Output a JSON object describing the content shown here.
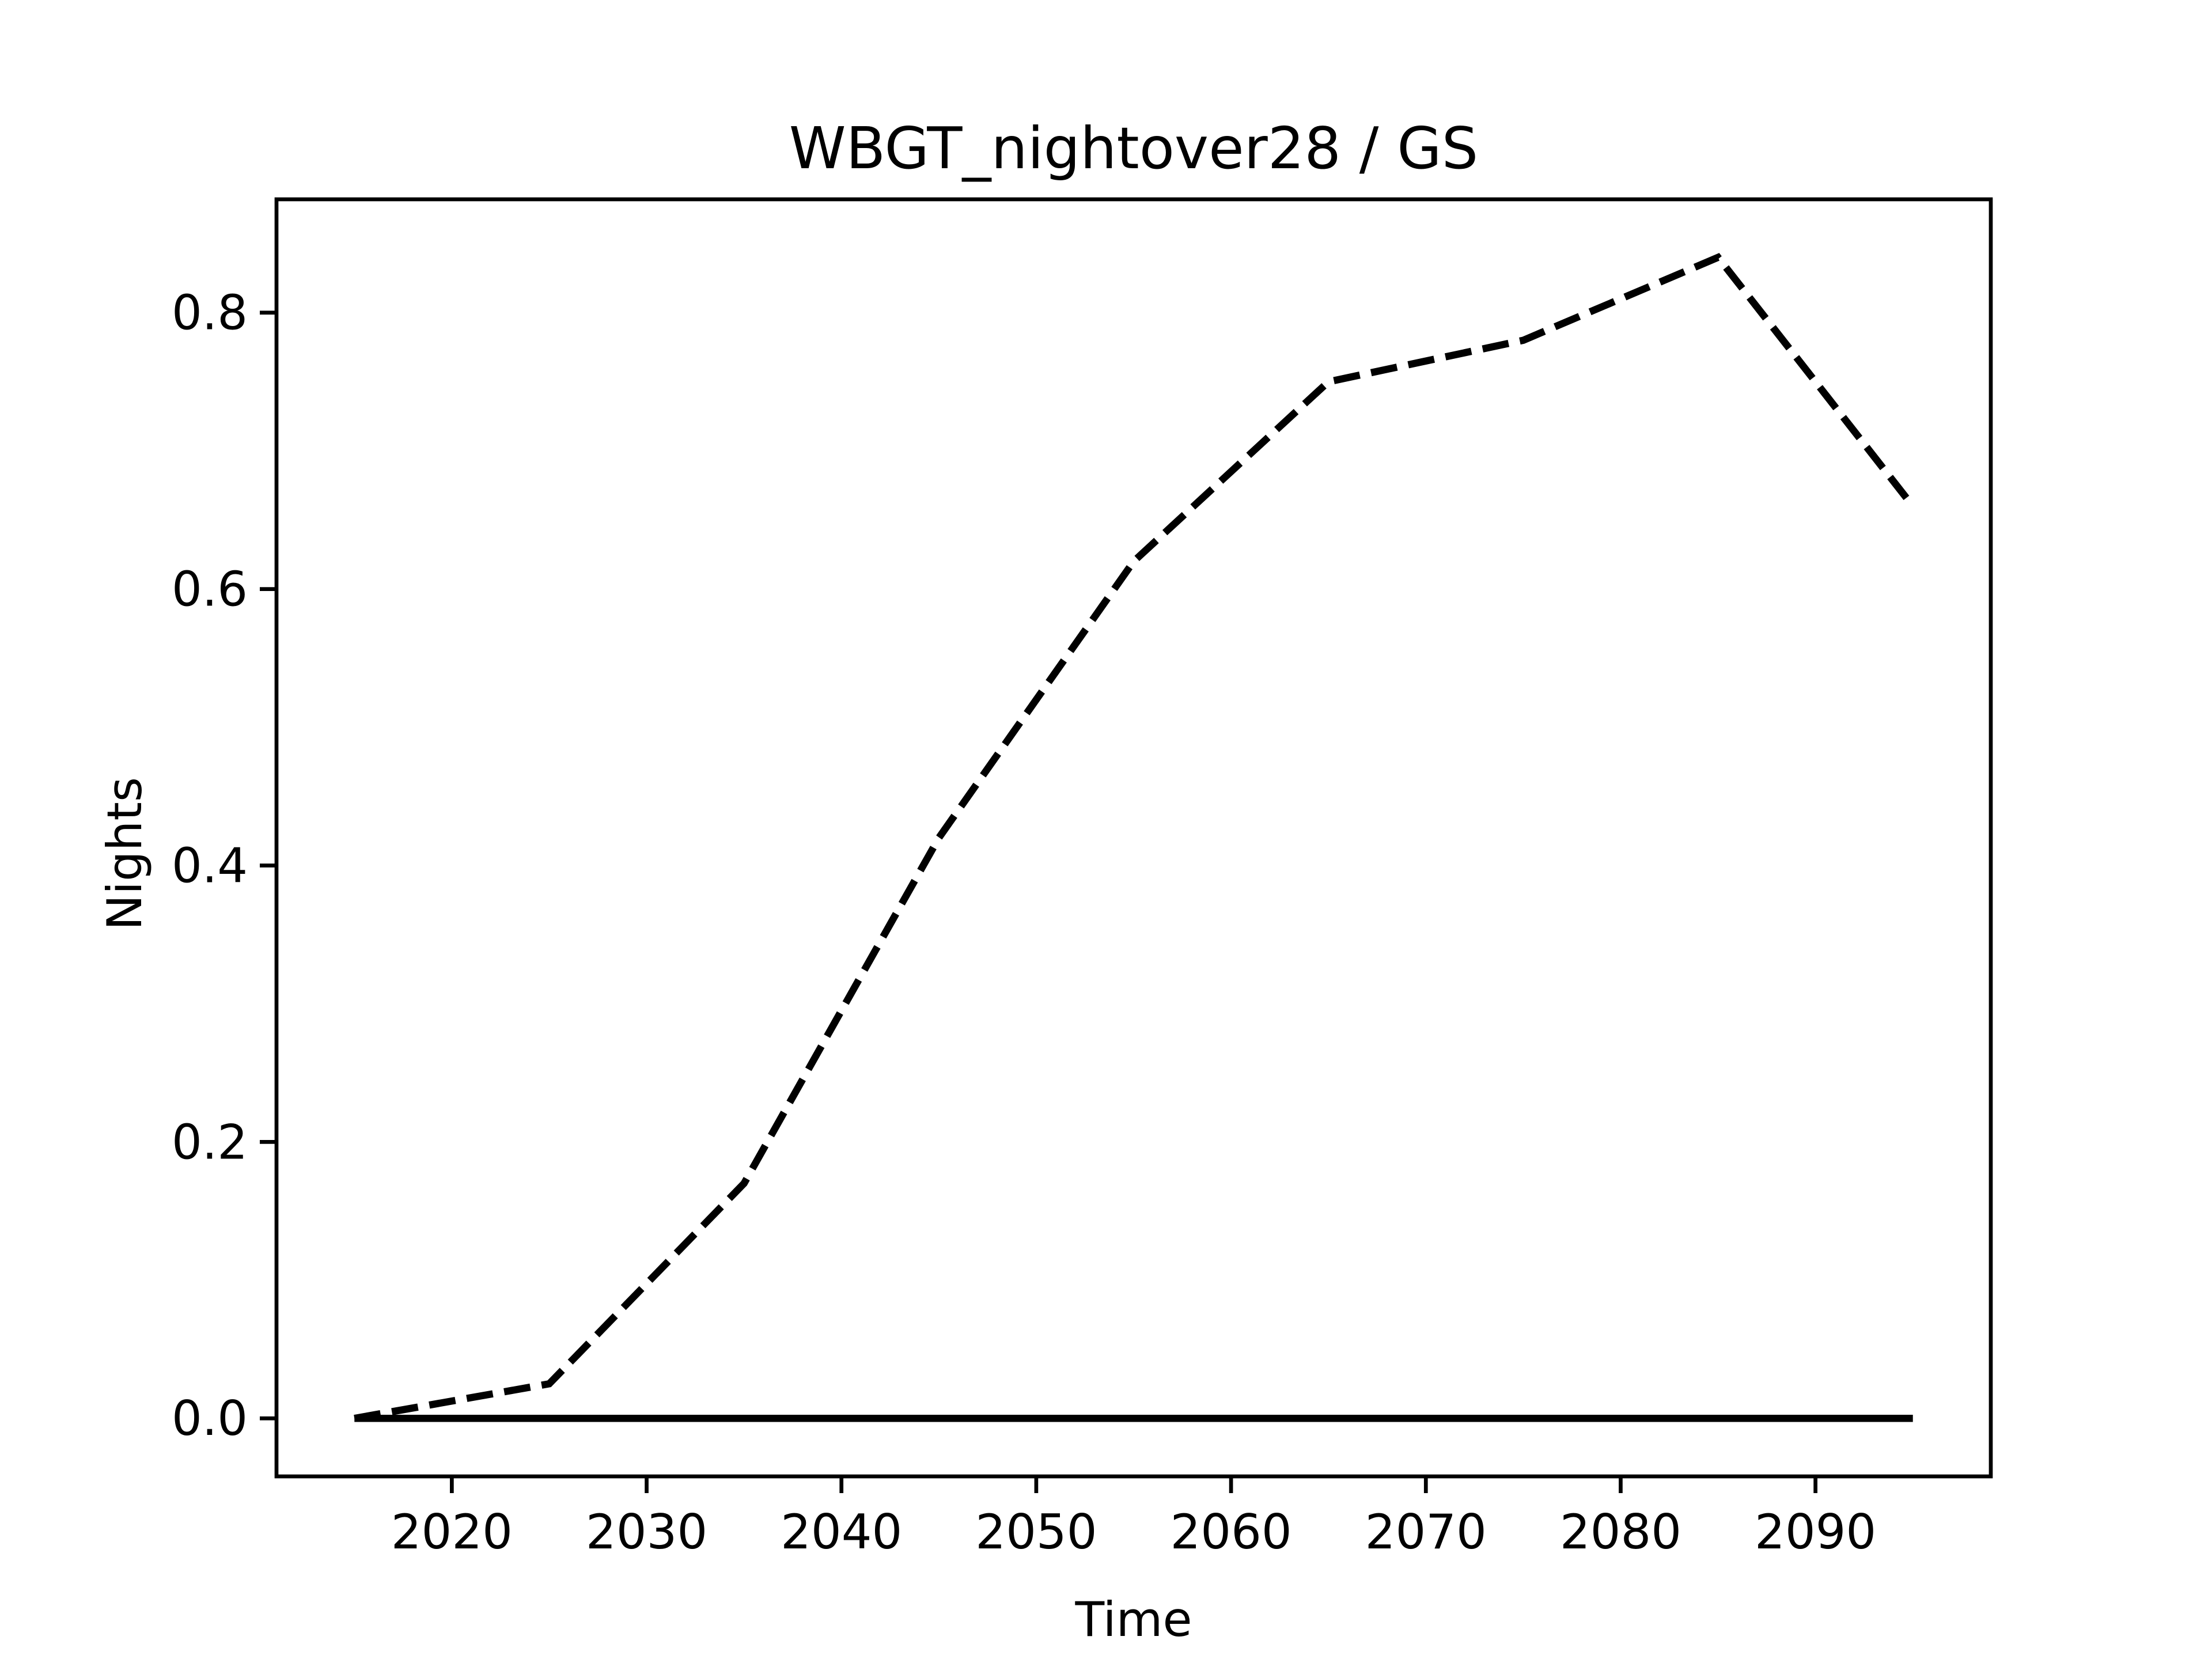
{
  "chart_data": {
    "type": "line",
    "title": "WBGT_nightover28 / GS",
    "x_label": "Time",
    "y_label": "Nights",
    "x": [
      2015,
      2025,
      2035,
      2045,
      2055,
      2065,
      2075,
      2085,
      2095
    ],
    "series": [
      {
        "color": "#000000",
        "linestyle": "dashed",
        "values": [
          0,
          0.025,
          0.17,
          0.42,
          0.62,
          0.75,
          0.78,
          0.84,
          0.66
        ]
      },
      {
        "color": "#000000",
        "linestyle": "solid",
        "values": [
          0,
          0,
          0,
          0,
          0,
          0,
          0,
          0,
          0
        ]
      }
    ],
    "xlim": [
      2011,
      2099
    ],
    "ylim": [
      -0.042,
      0.882
    ],
    "xticks": [
      2020,
      2030,
      2040,
      2050,
      2060,
      2070,
      2080,
      2090
    ],
    "yticks": [
      {
        "value": 0,
        "label": "0.0"
      },
      {
        "value": 0.2,
        "label": "0.2"
      },
      {
        "value": 0.4,
        "label": "0.4"
      },
      {
        "value": 0.6,
        "label": "0.6"
      },
      {
        "value": 0.8,
        "label": "0.8"
      }
    ],
    "grid": false
  }
}
